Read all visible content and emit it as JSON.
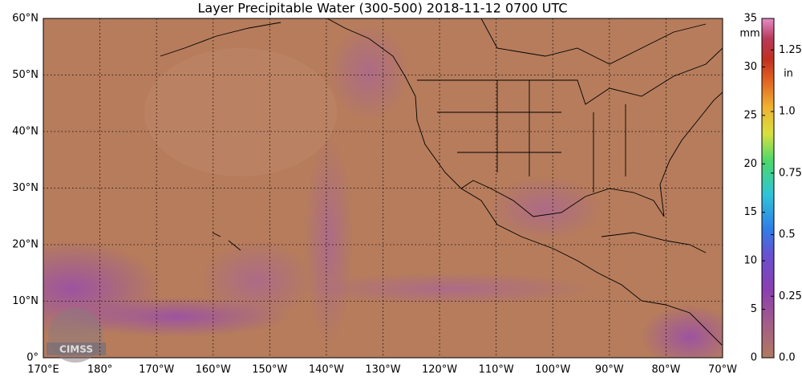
{
  "map": {
    "title": "Layer Precipitable Water (300-500)  2018-11-12 0700 UTC",
    "lat_labels": [
      "60°N",
      "50°N",
      "40°N",
      "30°N",
      "20°N",
      "10°N",
      "0°"
    ],
    "lon_labels": [
      "170°E",
      "180°",
      "170°W",
      "160°W",
      "150°W",
      "140°W",
      "130°W",
      "120°W",
      "110°W",
      "100°W",
      "90°W",
      "80°W",
      "70°W"
    ],
    "logo": "CIMSS",
    "colorbar": {
      "mm_unit": "mm",
      "in_unit": "in",
      "mm_lim": [
        0,
        35
      ],
      "mm_ticks": [
        0,
        5,
        10,
        15,
        20,
        25,
        30,
        35
      ],
      "in_ticks": [
        {
          "value": 0,
          "label": "0.0"
        },
        0.25,
        0.5,
        0.75,
        {
          "value": 1,
          "label": "1.0"
        },
        1.25
      ]
    }
  }
}
